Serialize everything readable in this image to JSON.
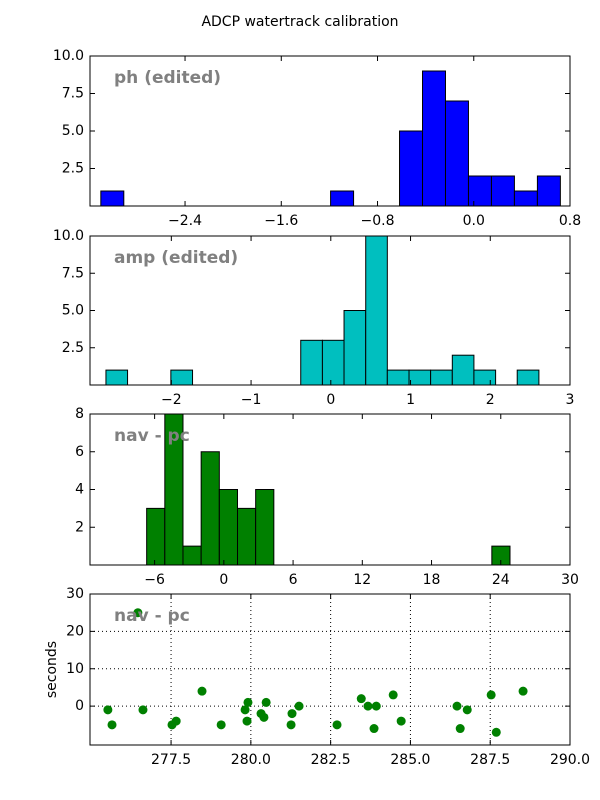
{
  "title": "ADCP watertrack calibration",
  "chart_data": [
    {
      "type": "histogram",
      "annotation": "ph (edited)",
      "color": "#0000ff",
      "bins": [
        -3.1,
        -2.909,
        -2.718,
        -2.527,
        -2.336,
        -2.145,
        -1.954,
        -1.763,
        -1.572,
        -1.381,
        -1.19,
        -0.999,
        -0.808,
        -0.617,
        -0.426,
        -0.235,
        -0.044,
        0.147,
        0.338,
        0.529,
        0.72
      ],
      "values": [
        1,
        0,
        0,
        0,
        0,
        0,
        0,
        0,
        0,
        0,
        1,
        0,
        0,
        5,
        9,
        7,
        2,
        2,
        1,
        2
      ],
      "xlim": [
        -3.19,
        0.8
      ],
      "ylim": [
        0,
        10
      ],
      "xticks": [
        {
          "value": -2.4,
          "label": "−2.4"
        },
        {
          "value": -1.6,
          "label": "−1.6"
        },
        {
          "value": -0.8,
          "label": "−0.8"
        },
        {
          "value": 0,
          "label": "0.0"
        },
        0.8
      ],
      "yticks": [
        2.5,
        {
          "value": 5,
          "label": "5.0"
        },
        7.5,
        {
          "value": 10,
          "label": "10.0"
        }
      ]
    },
    {
      "type": "histogram",
      "annotation": "amp (edited)",
      "color": "#00bfbf",
      "bins": [
        -2.82,
        -2.549,
        -2.277,
        -2.006,
        -1.734,
        -1.463,
        -1.191,
        -0.92,
        -0.648,
        -0.377,
        -0.105,
        0.166,
        0.438,
        0.709,
        0.981,
        1.252,
        1.524,
        1.795,
        2.067,
        2.338,
        2.61
      ],
      "values": [
        1,
        0,
        0,
        1,
        0,
        0,
        0,
        0,
        0,
        3,
        3,
        5,
        10,
        1,
        1,
        1,
        2,
        1,
        0,
        1
      ],
      "xlim": [
        -3.02,
        3
      ],
      "ylim": [
        0,
        10
      ],
      "xticks": [
        {
          "value": -2,
          "label": "−2"
        },
        {
          "value": -1,
          "label": "−1"
        },
        0,
        1,
        2,
        3
      ],
      "yticks": [
        2.5,
        {
          "value": 5,
          "label": "5.0"
        },
        7.5,
        {
          "value": 10,
          "label": "10.0"
        }
      ]
    },
    {
      "type": "histogram",
      "annotation": "nav - pc",
      "color": "#008000",
      "bins": [
        -6.69,
        -5.116,
        -3.541,
        -1.967,
        -0.392,
        1.183,
        2.757,
        4.332,
        5.906,
        7.481,
        9.055,
        10.63,
        12.204,
        13.779,
        15.353,
        16.928,
        18.502,
        20.077,
        21.651,
        23.226,
        24.8
      ],
      "values": [
        3,
        8,
        1,
        6,
        4,
        3,
        4,
        0,
        0,
        0,
        0,
        0,
        0,
        0,
        0,
        0,
        0,
        0,
        0,
        1
      ],
      "xlim": [
        -11.6,
        30
      ],
      "ylim": [
        0,
        8
      ],
      "xticks": [
        {
          "value": -6,
          "label": "−6"
        },
        0,
        6,
        12,
        18,
        24,
        30
      ],
      "yticks": [
        2,
        4,
        6,
        8
      ]
    },
    {
      "type": "scatter",
      "annotation": "nav - pc",
      "color": "#008000",
      "ylabel": "seconds",
      "grid": true,
      "x": [
        275.52,
        275.65,
        276.46,
        276.62,
        277.53,
        277.66,
        278.47,
        279.07,
        279.82,
        279.88,
        279.91,
        280.32,
        280.41,
        280.48,
        281.26,
        281.29,
        281.51,
        282.7,
        283.46,
        283.67,
        283.86,
        283.93,
        284.46,
        284.71,
        286.46,
        286.56,
        286.78,
        287.53,
        287.69,
        288.53
      ],
      "values": [
        -1,
        -5,
        25,
        -1,
        -5,
        -4,
        4,
        -5,
        -1,
        -4,
        1,
        -2,
        -3,
        1,
        -5,
        -2,
        0,
        -5,
        2,
        0,
        -6,
        0,
        3,
        -4,
        0,
        -6,
        -1,
        3,
        -7,
        4
      ],
      "xlim": [
        274.96,
        290
      ],
      "ylim": [
        -10.4,
        30
      ],
      "xticks": [
        277.5,
        {
          "value": 280,
          "label": "280.0"
        },
        282.5,
        {
          "value": 285,
          "label": "285.0"
        },
        287.5,
        {
          "value": 290,
          "label": "290.0"
        }
      ],
      "yticks": [
        0,
        10,
        20,
        30
      ]
    }
  ]
}
